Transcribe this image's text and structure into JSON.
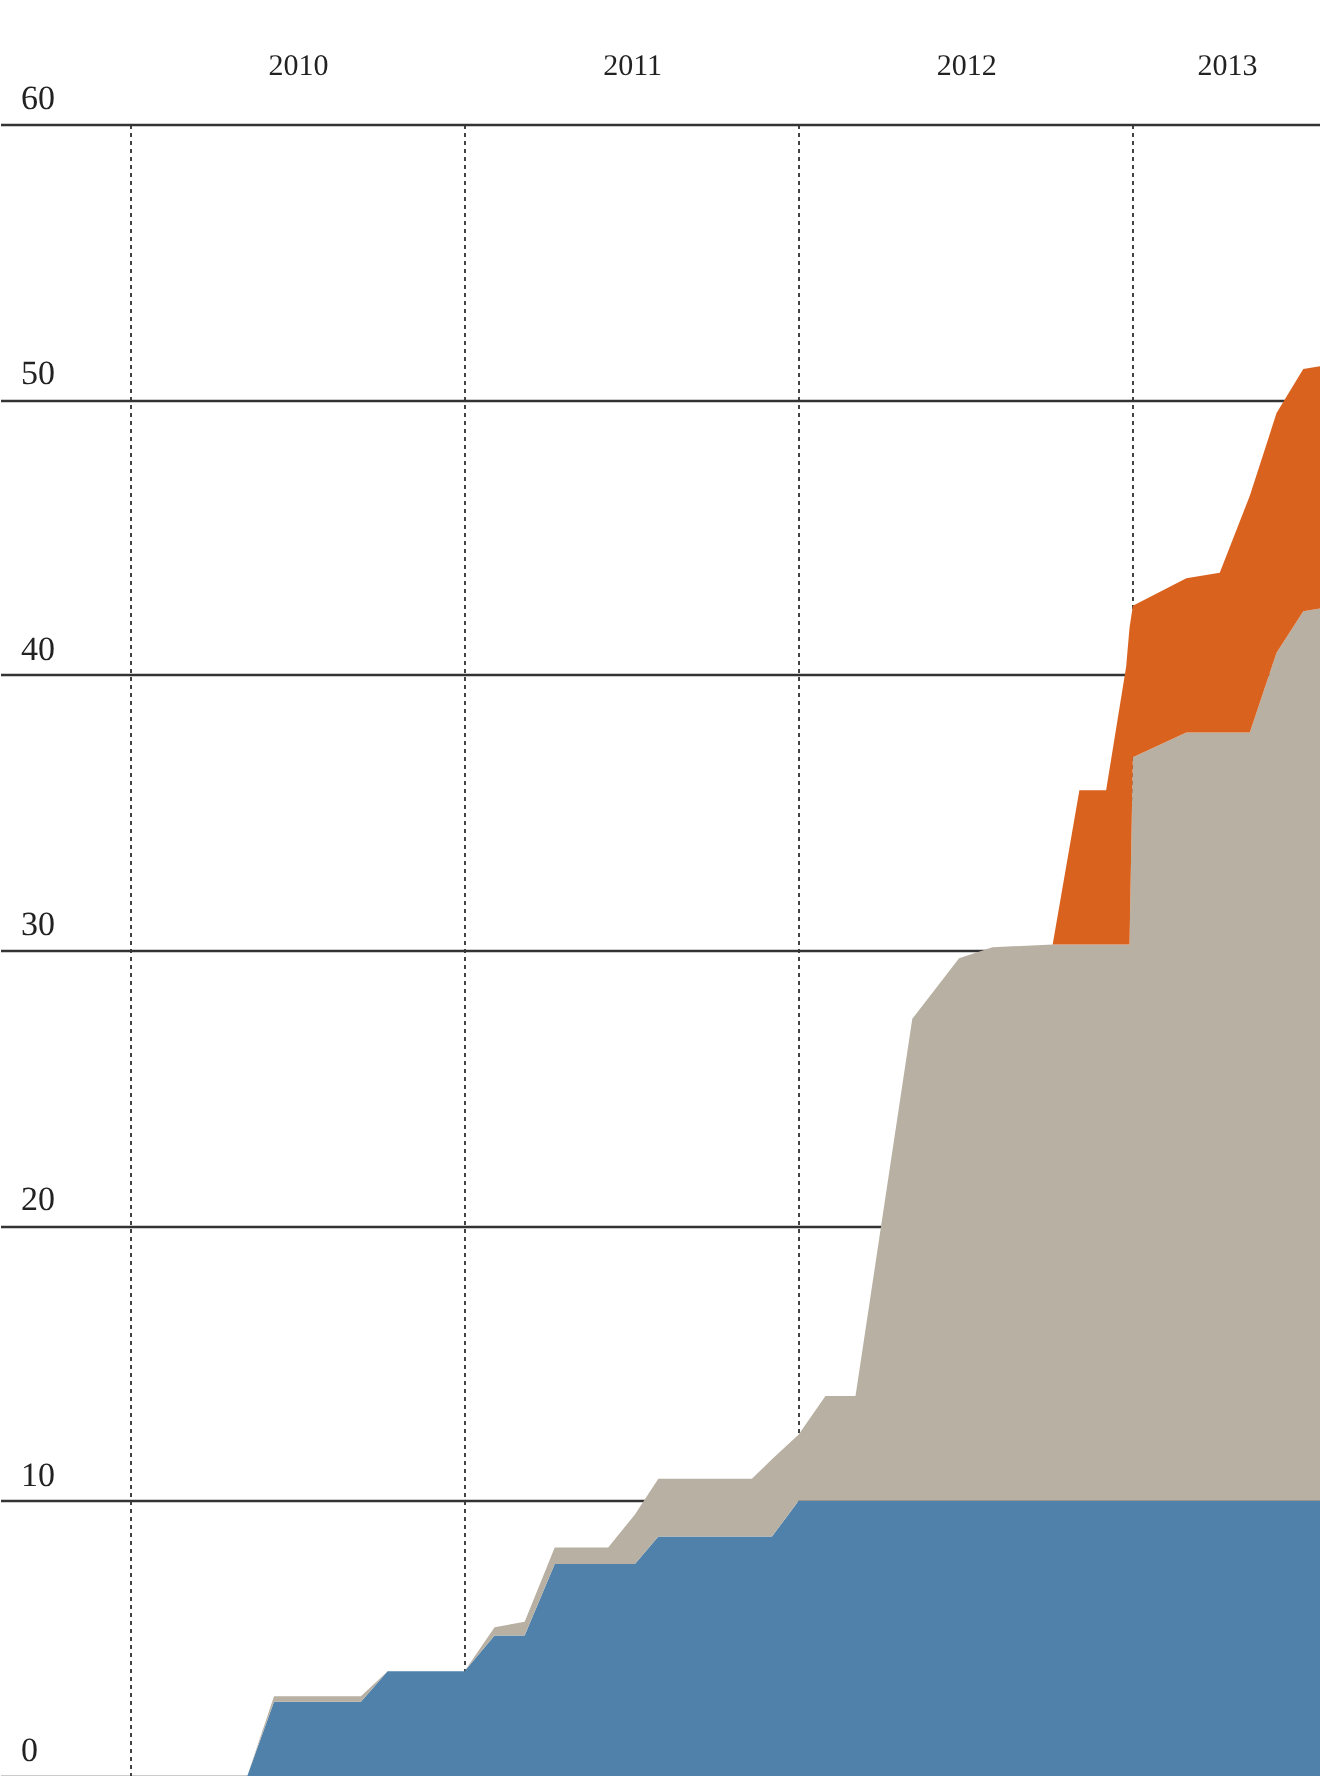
{
  "chart_data": {
    "type": "area",
    "stacked": true,
    "grid": true,
    "x": [
      2010.35,
      2010.43,
      2010.69,
      2010.77,
      2011.0,
      2011.09,
      2011.18,
      2011.27,
      2011.43,
      2011.51,
      2011.58,
      2011.86,
      2011.92,
      2012.0,
      2012.08,
      2012.17,
      2012.34,
      2012.48,
      2012.58,
      2012.76,
      2012.84,
      2012.92,
      2012.98,
      2012.99,
      2013.0,
      2013.16,
      2013.26,
      2013.35,
      2013.43,
      2013.51,
      2013.56
    ],
    "series": [
      {
        "color": "#4f81ab",
        "values": [
          0,
          2.7,
          2.7,
          3.8,
          3.8,
          5.1,
          5.1,
          7.7,
          7.7,
          7.7,
          8.7,
          8.7,
          8.7,
          10,
          10,
          10,
          10,
          10,
          10,
          10,
          10,
          10,
          10,
          10,
          10,
          10,
          10,
          10,
          10,
          10,
          10
        ]
      },
      {
        "color": "#b8b1a3",
        "values": [
          0,
          0.2,
          0.2,
          0,
          0,
          0.3,
          0.5,
          0.6,
          0.6,
          1.8,
          2.1,
          2.1,
          2.8,
          2.4,
          3.8,
          3.8,
          17.5,
          19.7,
          20.1,
          20.2,
          20.2,
          20.2,
          20.2,
          20.2,
          27,
          27.9,
          27.9,
          27.9,
          30.8,
          32.3,
          32.4
        ]
      },
      {
        "color": "#d9621f",
        "values": [
          0,
          0,
          0,
          0,
          0,
          0,
          0,
          0,
          0,
          0,
          0,
          0,
          0,
          0,
          0,
          0,
          0,
          0,
          0,
          0,
          5.6,
          5.6,
          10.1,
          11.5,
          5.5,
          5.6,
          5.8,
          8.6,
          8.7,
          8.8,
          8.8
        ]
      }
    ],
    "xlim": [
      2009.61,
      2013.56
    ],
    "xticks": [
      {
        "value": 2010,
        "label": null
      },
      {
        "value": 2010.5,
        "label": "2010"
      },
      {
        "value": 2011,
        "label": null
      },
      {
        "value": 2011.5,
        "label": "2011"
      },
      {
        "value": 2012,
        "label": null
      },
      {
        "value": 2012.5,
        "label": "2012"
      },
      {
        "value": 2013,
        "label": null
      },
      {
        "value": 2013.28,
        "label": "2013"
      }
    ],
    "ylim": [
      0,
      60
    ],
    "yticks": [
      0,
      10,
      20,
      30,
      40,
      50,
      60
    ]
  }
}
